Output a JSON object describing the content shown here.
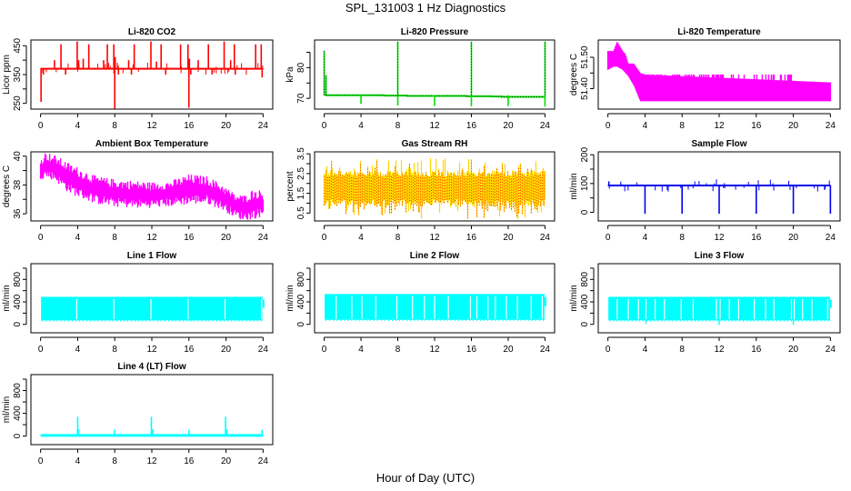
{
  "title": "SPL_131003  1 Hz Diagnostics",
  "x_label": "Hour of Day (UTC)",
  "chart_data": [
    {
      "type": "line",
      "title": "Li-820 CO2",
      "xlabel": "",
      "ylabel": "Licor ppm",
      "xlim": [
        0,
        24
      ],
      "ylim": [
        230,
        470
      ],
      "xticks": [
        0,
        4,
        8,
        12,
        16,
        20,
        24
      ],
      "yticks": [
        250,
        300,
        350,
        400,
        450
      ],
      "yticklabels": [
        "250",
        "",
        "350",
        "",
        "450"
      ],
      "color": "#ff0000",
      "style": "baseline-spikes",
      "baseline": 370,
      "noise": 4,
      "spikes_up": [
        [
          2.2,
          455
        ],
        [
          3.95,
          465
        ],
        [
          4.1,
          400
        ],
        [
          4.6,
          405
        ],
        [
          5.2,
          455
        ],
        [
          7.2,
          455
        ],
        [
          7.9,
          455
        ],
        [
          8.05,
          410
        ],
        [
          10.1,
          455
        ],
        [
          11.9,
          465
        ],
        [
          13.0,
          455
        ],
        [
          15.1,
          455
        ],
        [
          15.9,
          455
        ],
        [
          16.05,
          405
        ],
        [
          18.1,
          455
        ],
        [
          19.8,
          465
        ],
        [
          20.9,
          455
        ],
        [
          23.2,
          455
        ],
        [
          23.8,
          455
        ],
        [
          1.5,
          400
        ],
        [
          6.8,
          400
        ],
        [
          9.5,
          400
        ],
        [
          12.5,
          395
        ],
        [
          17.0,
          400
        ],
        [
          20.5,
          400
        ]
      ],
      "spikes_down": [
        [
          0.05,
          255
        ],
        [
          0.3,
          350
        ],
        [
          2.7,
          350
        ],
        [
          8.0,
          230
        ],
        [
          8.4,
          350
        ],
        [
          9.8,
          350
        ],
        [
          13.5,
          350
        ],
        [
          16.0,
          235
        ],
        [
          16.2,
          350
        ],
        [
          18.5,
          350
        ],
        [
          21.0,
          350
        ],
        [
          23.9,
          340
        ]
      ],
      "series": [
        {
          "name": "Li-820 CO2",
          "values": "baseline ~370 ppm with spikes to ~455-465 and drops to ~230-250"
        }
      ]
    },
    {
      "type": "line",
      "title": "Li-820 Pressure",
      "xlabel": "",
      "ylabel": "kPa",
      "xlim": [
        0,
        24
      ],
      "ylim": [
        66.5,
        89
      ],
      "xticks": [
        0,
        4,
        8,
        12,
        16,
        20,
        24
      ],
      "yticks": [
        70,
        75,
        80,
        85
      ],
      "yticklabels": [
        "70",
        "",
        "80",
        ""
      ],
      "color": "#00dd00",
      "style": "pressure",
      "segments": [
        [
          0.1,
          71.0
        ],
        [
          6.5,
          70.9
        ],
        [
          9.0,
          70.8
        ],
        [
          15.5,
          70.7
        ],
        [
          18.2,
          70.6
        ],
        [
          19.3,
          70.5
        ],
        [
          24,
          70.5
        ]
      ],
      "spikes_up": [
        [
          0.0,
          85.5
        ],
        [
          0.2,
          77.5
        ],
        [
          8.0,
          88.5
        ],
        [
          16.0,
          88.5
        ],
        [
          24.0,
          88.5
        ]
      ],
      "spikes_down": [
        [
          4.0,
          68.2
        ],
        [
          8.0,
          67.7
        ],
        [
          12.0,
          67.5
        ],
        [
          16.0,
          67.4
        ],
        [
          20.0,
          67.5
        ],
        [
          24.0,
          67.3
        ]
      ],
      "series": [
        {
          "name": "Li-820 Pressure",
          "values": "~71 kPa slowly drifting to ~70.5 kPa, spikes to ~88 at 8, 16, 24 h"
        }
      ]
    },
    {
      "type": "area",
      "title": "Li-820 Temperature",
      "xlabel": "",
      "ylabel": "degrees C",
      "xlim": [
        0,
        24
      ],
      "ylim": [
        51.335,
        51.555
      ],
      "xticks": [
        0,
        4,
        8,
        12,
        16,
        20,
        24
      ],
      "yticks": [
        51.4,
        51.45,
        51.5
      ],
      "yticklabels": [
        "51.40",
        "",
        "51.50"
      ],
      "color": "#ff00ff",
      "style": "band",
      "band": [
        [
          0,
          51.46,
          51.52
        ],
        [
          0.6,
          51.47,
          51.52
        ],
        [
          1.0,
          51.47,
          51.55
        ],
        [
          1.6,
          51.46,
          51.52
        ],
        [
          1.9,
          51.45,
          51.51
        ],
        [
          2.2,
          51.44,
          51.48
        ],
        [
          2.8,
          51.41,
          51.48
        ],
        [
          3.5,
          51.36,
          51.45
        ],
        [
          4,
          51.36,
          51.445
        ],
        [
          24,
          51.36,
          51.42
        ]
      ],
      "upper_spikes_until": 20.3,
      "series": [
        {
          "name": "Li-820 Temperature",
          "values": "~51.46-51.55 early, settling to 51.36-51.42 after hour 4"
        }
      ]
    },
    {
      "type": "area",
      "title": "Ambient Box Temperature",
      "xlabel": "",
      "ylabel": "degrees C",
      "xlim": [
        0,
        24
      ],
      "ylim": [
        35.5,
        40.3
      ],
      "xticks": [
        0,
        4,
        8,
        12,
        16,
        20,
        24
      ],
      "yticks": [
        36,
        37,
        38,
        39,
        40
      ],
      "yticklabels": [
        "36",
        "",
        "38",
        "",
        "40"
      ],
      "color": "#ff00ff",
      "style": "band",
      "band": [
        [
          0,
          38.6,
          39.5
        ],
        [
          0.5,
          38.8,
          40.0
        ],
        [
          1.5,
          38.6,
          39.8
        ],
        [
          3,
          37.8,
          39.2
        ],
        [
          4,
          37.5,
          38.9
        ],
        [
          6,
          37.0,
          38.3
        ],
        [
          8,
          36.8,
          38.1
        ],
        [
          10,
          36.7,
          38.0
        ],
        [
          12,
          36.7,
          37.9
        ],
        [
          14,
          36.8,
          38.0
        ],
        [
          16,
          37.0,
          38.4
        ],
        [
          18,
          37.0,
          38.3
        ],
        [
          19.5,
          36.6,
          37.8
        ],
        [
          21,
          36.0,
          37.1
        ],
        [
          22,
          35.8,
          37.0
        ],
        [
          23,
          36.0,
          37.4
        ],
        [
          24,
          36.1,
          37.3
        ]
      ],
      "series": [
        {
          "name": "Ambient Box Temperature",
          "values": "peaks ~40 C near hour 1, declining to ~36-37 C by hour 21"
        }
      ]
    },
    {
      "type": "area",
      "title": "Gas Stream RH",
      "xlabel": "",
      "ylabel": "percent",
      "xlim": [
        0,
        24
      ],
      "ylim": [
        0.1,
        3.6
      ],
      "xticks": [
        0,
        4,
        8,
        12,
        16,
        20,
        24
      ],
      "yticks": [
        0.5,
        1.0,
        1.5,
        2.0,
        2.5,
        3.0,
        3.5
      ],
      "yticklabels": [
        "0.5",
        "",
        "1.5",
        "",
        "2.5",
        "",
        "3.5"
      ],
      "color": "#ffd700",
      "secondary_color": "#ff3300",
      "style": "rh",
      "band": [
        [
          0,
          1.2,
          2.5
        ],
        [
          24,
          0.9,
          2.6
        ]
      ],
      "series": [
        {
          "name": "Gas Stream RH",
          "values": "mostly 1.0-2.5 %, excursions 0.2-3.3 %"
        }
      ]
    },
    {
      "type": "line",
      "title": "Sample Flow",
      "xlabel": "",
      "ylabel": "ml/min",
      "xlim": [
        0,
        24
      ],
      "ylim": [
        -30,
        210
      ],
      "xticks": [
        0,
        4,
        8,
        12,
        16,
        20,
        24
      ],
      "yticks": [
        0,
        50,
        100,
        150,
        200
      ],
      "yticklabels": [
        "0",
        "",
        "100",
        "",
        "200"
      ],
      "color": "#0000ee",
      "style": "baseline-spikes",
      "baseline": 93,
      "noise": 3,
      "spikes_up": [],
      "spikes_down": [
        [
          4.0,
          -5
        ],
        [
          8.0,
          -5
        ],
        [
          12.0,
          -5
        ],
        [
          16.0,
          -5
        ],
        [
          20.0,
          -5
        ],
        [
          24.0,
          -5
        ]
      ],
      "series": [
        {
          "name": "Sample Flow",
          "values": "~93 ml/min with drops to ~0 every 4 h"
        }
      ]
    },
    {
      "type": "area",
      "title": "Line 1 Flow",
      "xlabel": "",
      "ylabel": "ml/min",
      "xlim": [
        0,
        24
      ],
      "ylim": [
        -150,
        1080
      ],
      "xticks": [
        0,
        4,
        8,
        12,
        16,
        20,
        24
      ],
      "yticks": [
        0,
        200,
        400,
        600,
        800,
        1000
      ],
      "yticklabels": [
        "0",
        "",
        "400",
        "",
        "800",
        ""
      ],
      "color": "#00ffff",
      "style": "flowband",
      "low": 70,
      "high": 490,
      "gaps": [
        3.9,
        7.9,
        11.9,
        15.9,
        19.9,
        23.85
      ],
      "series": [
        {
          "name": "Line 1 Flow",
          "values": "switching between ~70 and ~490 ml/min"
        }
      ]
    },
    {
      "type": "area",
      "title": "Line 2 Flow",
      "xlabel": "",
      "ylabel": "ml/min",
      "xlim": [
        0,
        24
      ],
      "ylim": [
        -150,
        1080
      ],
      "xticks": [
        0,
        4,
        8,
        12,
        16,
        20,
        24
      ],
      "yticks": [
        0,
        200,
        400,
        600,
        800,
        1000
      ],
      "yticklabels": [
        "0",
        "",
        "400",
        "",
        "800",
        ""
      ],
      "color": "#00ffff",
      "style": "flowband",
      "low": 80,
      "high": 540,
      "gaps": [
        1.3,
        3.0,
        4.1,
        5.6,
        7.9,
        9.6,
        10.9,
        12.0,
        13.5,
        15.9,
        16.6,
        17.8,
        18.6,
        19.8,
        21.0,
        22.5,
        23.7
      ],
      "series": [
        {
          "name": "Line 2 Flow",
          "values": "switching between ~80 and ~540 ml/min"
        }
      ]
    },
    {
      "type": "area",
      "title": "Line 3 Flow",
      "xlabel": "",
      "ylabel": "ml/min",
      "xlim": [
        0,
        24
      ],
      "ylim": [
        -150,
        1080
      ],
      "xticks": [
        0,
        4,
        8,
        12,
        16,
        20,
        24
      ],
      "yticks": [
        0,
        200,
        400,
        600,
        800,
        1000
      ],
      "yticklabels": [
        "0",
        "",
        "400",
        "",
        "800",
        ""
      ],
      "color": "#00ffff",
      "style": "flowband",
      "low": 70,
      "high": 490,
      "gaps": [
        1.0,
        2.2,
        3.3,
        4.1,
        5.1,
        6.1,
        7.9,
        9.2,
        11.7,
        12.1,
        13.1,
        14.1,
        15.8,
        17.0,
        17.9,
        19.8,
        20.1,
        21.0,
        22.0,
        23.7
      ],
      "dips": [
        [
          4.1,
          10
        ],
        [
          12.0,
          -10
        ],
        [
          20.0,
          -10
        ]
      ],
      "series": [
        {
          "name": "Line 3 Flow",
          "values": "switching between ~70 and ~490 ml/min"
        }
      ]
    },
    {
      "type": "line",
      "title": "Line 4 (LT) Flow",
      "xlabel": "",
      "ylabel": "ml/min",
      "xlim": [
        0,
        24
      ],
      "ylim": [
        -150,
        1080
      ],
      "xticks": [
        0,
        4,
        8,
        12,
        16,
        20,
        24
      ],
      "yticks": [
        0,
        200,
        400,
        600,
        800,
        1000
      ],
      "yticklabels": [
        "0",
        "",
        "400",
        "",
        "800",
        ""
      ],
      "color": "#00ffff",
      "style": "baseline-spikes",
      "baseline": 12,
      "noise": 2,
      "thick": true,
      "spikes_up": [
        [
          4.0,
          340
        ],
        [
          4.1,
          120
        ],
        [
          8.0,
          110
        ],
        [
          11.95,
          340
        ],
        [
          12.1,
          120
        ],
        [
          16.0,
          110
        ],
        [
          19.95,
          340
        ],
        [
          20.1,
          120
        ],
        [
          23.9,
          110
        ]
      ],
      "spikes_down": [],
      "series": [
        {
          "name": "Line 4 (LT) Flow",
          "values": "~10 ml/min with spikes to ~340 at 4, 12, 20 h and ~110 at 8, 16, 24 h"
        }
      ]
    }
  ]
}
